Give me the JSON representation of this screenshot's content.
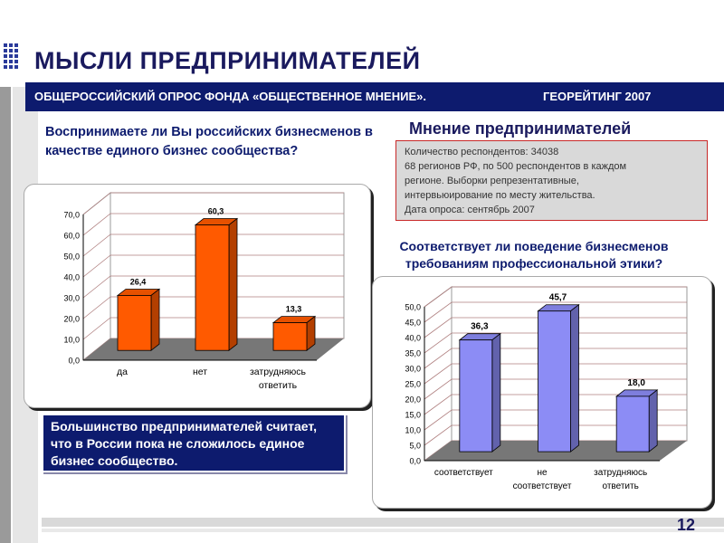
{
  "title": "МЫСЛИ ПРЕДПРИНИМАТЕЛЕЙ",
  "header": {
    "left": "ОБЩЕРОССИЙСКИЙ ОПРОС ФОНДА «ОБЩЕСТВЕННОЕ МНЕНИЕ».",
    "right": "ГЕОРЕЙТИНГ 2007"
  },
  "question1": "Воспринимаете ли Вы российских бизнесменов в качестве единого бизнес сообщества?",
  "opinion_title": "Мнение предпринимателей",
  "respondents": [
    "Количество респондентов: 34038",
    "68 регионов РФ, по 500 респондентов в каждом",
    "регионе. Выборки репрезентативные,",
    "интервьюирование по месту жительства.",
    "Дата опроса: сентябрь 2007"
  ],
  "question2": "Соответствует ли поведение бизнесменов требованиям профессиональной этики?",
  "conclusion": "Большинство предпринимателей считает, что в России пока не сложилось единое бизнес сообщество.",
  "page_number": "12",
  "colors": {
    "header_band": "#0d1b6e",
    "bar_orange": "#ff5a00",
    "bar_blue": "#8c8cf5",
    "chart_floor": "#777777"
  },
  "chart_data": [
    {
      "type": "bar",
      "categories": [
        "да",
        "нет",
        "затрудняюсь ответить"
      ],
      "values": [
        26.4,
        60.3,
        13.3
      ],
      "value_labels": [
        "26,4",
        "60,3",
        "13,3"
      ],
      "yticks": [
        "0,0",
        "10,0",
        "20,0",
        "30,0",
        "40,0",
        "50,0",
        "60,0",
        "70,0"
      ],
      "ylim": [
        0,
        70
      ],
      "grid": true,
      "style": "3d"
    },
    {
      "type": "bar",
      "categories": [
        "соответствует",
        "не соответствует",
        "затрудняюсь ответить"
      ],
      "values": [
        36.3,
        45.7,
        18.0
      ],
      "value_labels": [
        "36,3",
        "45,7",
        "18,0"
      ],
      "yticks": [
        "0,0",
        "5,0",
        "10,0",
        "15,0",
        "20,0",
        "25,0",
        "30,0",
        "35,0",
        "40,0",
        "45,0",
        "50,0"
      ],
      "ylim": [
        0,
        50
      ],
      "grid": true,
      "style": "3d"
    }
  ]
}
